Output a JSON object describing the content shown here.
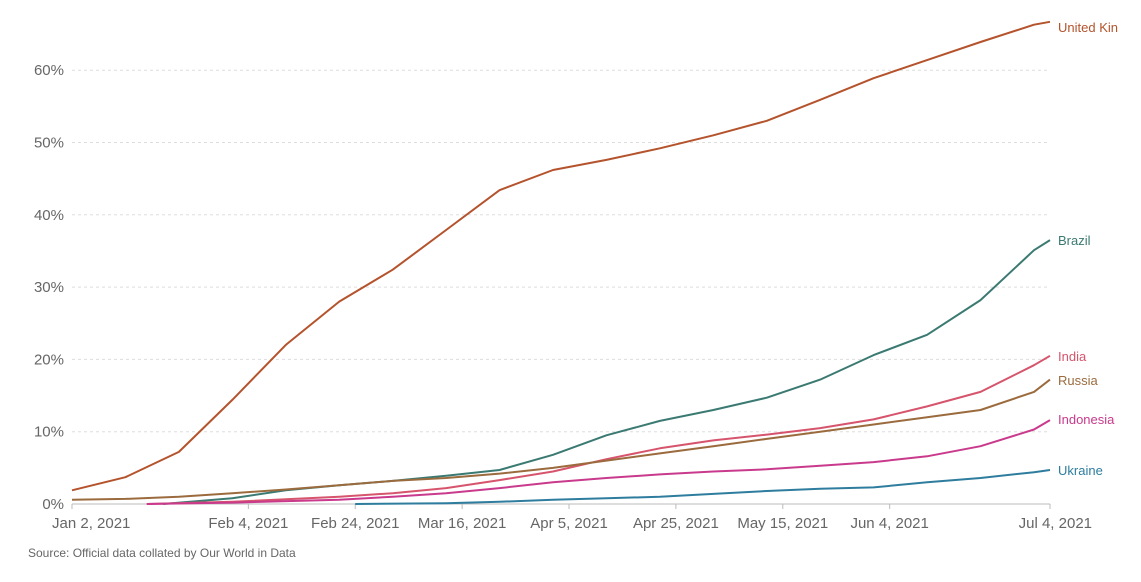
{
  "chart_data": {
    "type": "line",
    "title": "",
    "xlabel": "",
    "ylabel": "",
    "x_unit": "days since Jan 2, 2021",
    "xlim": [
      0,
      183
    ],
    "ylim": [
      0,
      67
    ],
    "grid": true,
    "y_ticks": [
      0,
      10,
      20,
      30,
      40,
      50,
      60
    ],
    "y_tick_labels": [
      "0%",
      "10%",
      "20%",
      "30%",
      "40%",
      "50%",
      "60%"
    ],
    "x_ticks": [
      0,
      33,
      53,
      73,
      93,
      113,
      133,
      153,
      183
    ],
    "x_tick_labels": [
      "Jan 2, 2021",
      "Feb 4, 2021",
      "Feb 24, 2021",
      "Mar 16, 2021",
      "Apr 5, 2021",
      "Apr 25, 2021",
      "May 15, 2021",
      "Jun 4, 2021",
      "Jul 4, 2021"
    ],
    "legend_placement": "right (line-end labels)",
    "series": [
      {
        "name": "United Kin",
        "color": "#b4532c",
        "x": [
          0,
          10,
          20,
          30,
          40,
          50,
          60,
          70,
          80,
          90,
          100,
          110,
          120,
          130,
          140,
          150,
          160,
          170,
          180,
          183
        ],
        "y": [
          1.9,
          3.7,
          7.2,
          14.4,
          22,
          28,
          32.4,
          37.9,
          43.4,
          46.2,
          47.6,
          49.2,
          51,
          53,
          55.9,
          58.9,
          61.4,
          63.9,
          66.3,
          66.7
        ]
      },
      {
        "name": "Brazil",
        "color": "#3b7a72",
        "x": [
          17,
          30,
          40,
          50,
          60,
          70,
          80,
          90,
          100,
          110,
          120,
          130,
          140,
          150,
          160,
          170,
          180,
          183
        ],
        "y": [
          0,
          0.8,
          1.9,
          2.6,
          3.2,
          3.9,
          4.7,
          6.8,
          9.5,
          11.5,
          13,
          14.7,
          17.2,
          20.6,
          23.4,
          28.2,
          35.1,
          36.5
        ]
      },
      {
        "name": "India",
        "color": "#d6546c",
        "x": [
          14,
          30,
          50,
          60,
          70,
          80,
          90,
          100,
          110,
          120,
          130,
          140,
          150,
          160,
          170,
          180,
          183
        ],
        "y": [
          0,
          0.3,
          1.0,
          1.5,
          2.2,
          3.3,
          4.5,
          6.2,
          7.7,
          8.8,
          9.6,
          10.5,
          11.7,
          13.5,
          15.5,
          19.2,
          20.5
        ]
      },
      {
        "name": "Russia",
        "color": "#9b6b3e",
        "x": [
          0,
          10,
          20,
          30,
          40,
          50,
          60,
          70,
          80,
          90,
          100,
          110,
          120,
          130,
          140,
          150,
          160,
          170,
          180,
          183
        ],
        "y": [
          0.6,
          0.7,
          1.0,
          1.5,
          2.0,
          2.6,
          3.2,
          3.6,
          4.2,
          5.0,
          6.0,
          7.0,
          8.0,
          9.0,
          10.0,
          11.0,
          12.0,
          13.0,
          15.5,
          17.2
        ]
      },
      {
        "name": "Indonesia",
        "color": "#c93a8c",
        "x": [
          14,
          30,
          50,
          60,
          70,
          80,
          90,
          100,
          110,
          120,
          130,
          140,
          150,
          160,
          170,
          180,
          183
        ],
        "y": [
          0,
          0.2,
          0.6,
          1.0,
          1.5,
          2.2,
          3.0,
          3.6,
          4.1,
          4.5,
          4.8,
          5.3,
          5.8,
          6.6,
          8.0,
          10.3,
          11.6
        ]
      },
      {
        "name": "Ukraine",
        "color": "#2e7d9e",
        "x": [
          53,
          70,
          80,
          90,
          100,
          110,
          120,
          130,
          140,
          150,
          160,
          170,
          180,
          183
        ],
        "y": [
          0,
          0.1,
          0.3,
          0.6,
          0.8,
          1.0,
          1.4,
          1.8,
          2.1,
          2.3,
          3.0,
          3.6,
          4.4,
          4.7
        ]
      }
    ]
  },
  "source": "Source: Official data collated by Our World in Data"
}
